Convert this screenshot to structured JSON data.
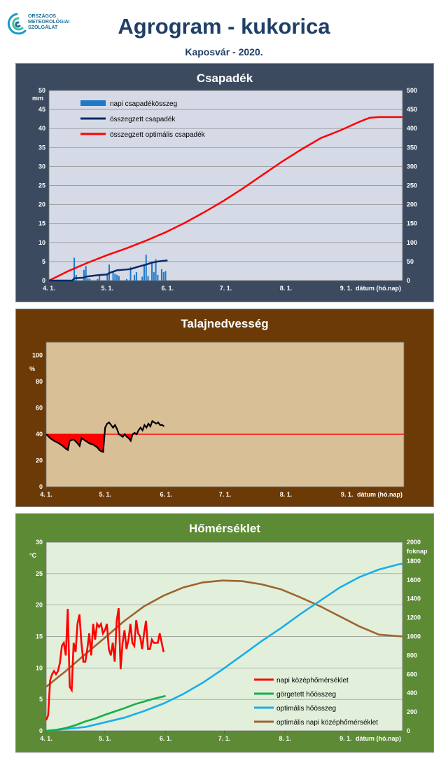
{
  "header": {
    "org_lines": [
      "ORSZÁGOS",
      "METEOROLÓGIAI",
      "SZOLGÁLAT"
    ],
    "title": "Agrogram - kukorica",
    "subtitle": "Kaposvár  - 2020."
  },
  "colors": {
    "precip_panel": "#3b4a5e",
    "precip_plot": "#d5dae6",
    "soil_panel": "#6b3a06",
    "soil_plot": "#d9bf96",
    "temp_panel": "#5d8a35",
    "temp_plot": "#e2efda",
    "daily_precip": "#1f78c8",
    "cum_precip": "#0c2a66",
    "optimal_red": "#ff0000",
    "soil_line": "#000000",
    "rolling_heat": "#11b04a",
    "optimal_heat": "#19aee8",
    "optimal_mean_temp": "#9c6531"
  },
  "x_axis": {
    "tick_labels": [
      "4. 1.",
      "5. 1.",
      "6. 1.",
      "7. 1.",
      "8. 1.",
      "9. 1."
    ],
    "tick_days": [
      0,
      30,
      61,
      91,
      122,
      153
    ],
    "max_day": 182,
    "label": "dátum (hó.nap)"
  },
  "chart_data": [
    {
      "type": "bar",
      "title": "Csapadék",
      "ylabel": "mm",
      "ylim": [
        0,
        50
      ],
      "y_ticks": [
        0,
        5,
        10,
        15,
        20,
        25,
        30,
        35,
        40,
        45,
        50
      ],
      "y2lim": [
        0,
        500
      ],
      "y2_ticks": [
        0,
        50,
        100,
        150,
        200,
        250,
        300,
        350,
        400,
        450,
        500
      ],
      "grid": true,
      "legend_position": "top-left",
      "series": [
        {
          "name": "napi csapadékösszeg",
          "kind": "bar",
          "axis": "left",
          "points": [
            [
              13,
              6.0
            ],
            [
              14,
              1.5
            ],
            [
              18,
              2.8
            ],
            [
              19,
              3.8
            ],
            [
              20,
              0.6
            ],
            [
              21,
              0.5
            ],
            [
              25,
              0.4
            ],
            [
              26,
              1.2
            ],
            [
              30,
              1.8
            ],
            [
              31,
              4.2
            ],
            [
              33,
              2.2
            ],
            [
              34,
              1.8
            ],
            [
              35,
              1.5
            ],
            [
              36,
              1.2
            ],
            [
              40,
              0.4
            ],
            [
              42,
              3.6
            ],
            [
              44,
              1.5
            ],
            [
              45,
              2.2
            ],
            [
              48,
              1.0
            ],
            [
              49,
              4.0
            ],
            [
              50,
              6.8
            ],
            [
              51,
              1.2
            ],
            [
              53,
              4.5
            ],
            [
              54,
              2.2
            ],
            [
              55,
              5.6
            ],
            [
              56,
              1.5
            ],
            [
              58,
              3.0
            ],
            [
              59,
              2.2
            ],
            [
              60,
              2.5
            ]
          ]
        },
        {
          "name": "összegzett csapadék",
          "kind": "line",
          "axis": "right",
          "points": [
            [
              0,
              0
            ],
            [
              12,
              0
            ],
            [
              13,
              6
            ],
            [
              18,
              7.5
            ],
            [
              19,
              10.3
            ],
            [
              25,
              14
            ],
            [
              30,
              16
            ],
            [
              31,
              20
            ],
            [
              35,
              27
            ],
            [
              42,
              30
            ],
            [
              45,
              35
            ],
            [
              50,
              42
            ],
            [
              53,
              47
            ],
            [
              56,
              50
            ],
            [
              61,
              53
            ]
          ]
        },
        {
          "name": "összegzett optimális csapadék",
          "kind": "line",
          "axis": "right",
          "points": [
            [
              0,
              0
            ],
            [
              10,
              25
            ],
            [
              20,
              47
            ],
            [
              30,
              67
            ],
            [
              40,
              85
            ],
            [
              50,
              105
            ],
            [
              60,
              127
            ],
            [
              70,
              152
            ],
            [
              80,
              180
            ],
            [
              90,
              210
            ],
            [
              100,
              243
            ],
            [
              110,
              278
            ],
            [
              120,
              313
            ],
            [
              130,
              345
            ],
            [
              140,
              375
            ],
            [
              150,
              395
            ],
            [
              160,
              418
            ],
            [
              165,
              428
            ],
            [
              170,
              430
            ],
            [
              182,
              430
            ]
          ]
        }
      ]
    },
    {
      "type": "line",
      "title": "Talajnedvesség",
      "ylabel": "%",
      "ylim": [
        0,
        110
      ],
      "y_ticks": [
        0,
        20,
        40,
        60,
        80,
        100
      ],
      "reference_line": 40,
      "grid": false,
      "series": [
        {
          "name": "talajnedvesség",
          "points": [
            [
              0,
              40
            ],
            [
              2,
              37
            ],
            [
              4,
              35
            ],
            [
              6,
              33.5
            ],
            [
              8,
              31.5
            ],
            [
              10,
              29
            ],
            [
              11,
              28
            ],
            [
              12,
              35
            ],
            [
              14,
              36
            ],
            [
              16,
              33
            ],
            [
              17,
              31
            ],
            [
              18,
              37
            ],
            [
              20,
              35
            ],
            [
              22,
              33
            ],
            [
              24,
              32
            ],
            [
              26,
              30
            ],
            [
              27,
              28
            ],
            [
              28,
              27
            ],
            [
              29,
              26.5
            ],
            [
              30,
              45
            ],
            [
              31,
              48
            ],
            [
              32,
              49
            ],
            [
              33,
              47
            ],
            [
              34,
              45
            ],
            [
              35,
              47
            ],
            [
              36,
              44
            ],
            [
              37,
              40
            ],
            [
              38,
              39
            ],
            [
              39,
              38
            ],
            [
              40,
              40
            ],
            [
              41,
              38
            ],
            [
              42,
              37
            ],
            [
              43,
              35
            ],
            [
              44,
              40
            ],
            [
              45,
              41
            ],
            [
              46,
              40
            ],
            [
              47,
              43
            ],
            [
              48,
              45
            ],
            [
              49,
              43
            ],
            [
              50,
              47
            ],
            [
              51,
              45
            ],
            [
              52,
              48
            ],
            [
              53,
              46
            ],
            [
              54,
              50
            ],
            [
              55,
              49
            ],
            [
              56,
              48
            ],
            [
              57,
              49
            ],
            [
              58,
              47
            ],
            [
              59,
              47
            ],
            [
              60,
              46
            ]
          ]
        }
      ]
    },
    {
      "type": "line",
      "title": "Hőmérséklet",
      "ylabel": "°C",
      "ylim": [
        0,
        30
      ],
      "y_ticks": [
        0,
        5,
        10,
        15,
        20,
        25,
        30
      ],
      "y2label": "foknap",
      "y2lim": [
        0,
        2000
      ],
      "y2_ticks": [
        0,
        200,
        400,
        600,
        800,
        1000,
        1200,
        1400,
        1600,
        1800,
        2000
      ],
      "grid": true,
      "legend_position": "bottom-right",
      "series": [
        {
          "name": "napi középhőmérséklet",
          "axis": "left",
          "points": [
            [
              0,
              1.7
            ],
            [
              1,
              2.5
            ],
            [
              2,
              8
            ],
            [
              3,
              9
            ],
            [
              4,
              9.5
            ],
            [
              5,
              9
            ],
            [
              6,
              9.5
            ],
            [
              7,
              10.8
            ],
            [
              8,
              13.5
            ],
            [
              9,
              14
            ],
            [
              10,
              12
            ],
            [
              11,
              19.4
            ],
            [
              12,
              7
            ],
            [
              13,
              6.5
            ],
            [
              14,
              14
            ],
            [
              15,
              12.5
            ],
            [
              16,
              17
            ],
            [
              17,
              18.5
            ],
            [
              18,
              14
            ],
            [
              19,
              11
            ],
            [
              20,
              11
            ],
            [
              21,
              13
            ],
            [
              22,
              15.5
            ],
            [
              23,
              12
            ],
            [
              24,
              17
            ],
            [
              25,
              14.5
            ],
            [
              26,
              17
            ],
            [
              27,
              16.5
            ],
            [
              28,
              17
            ],
            [
              29,
              15.5
            ],
            [
              30,
              16
            ],
            [
              31,
              17
            ],
            [
              32,
              13
            ],
            [
              33,
              12
            ],
            [
              34,
              14
            ],
            [
              35,
              11
            ],
            [
              36,
              17.5
            ],
            [
              37,
              19.5
            ],
            [
              38,
              9.8
            ],
            [
              39,
              14
            ],
            [
              40,
              16
            ],
            [
              41,
              13
            ],
            [
              42,
              14.5
            ],
            [
              43,
              17
            ],
            [
              44,
              14
            ],
            [
              45,
              13.5
            ],
            [
              46,
              17.6
            ],
            [
              47,
              15.5
            ],
            [
              48,
              15
            ],
            [
              49,
              13
            ],
            [
              50,
              15.5
            ],
            [
              51,
              17.5
            ],
            [
              52,
              13
            ],
            [
              53,
              13
            ],
            [
              54,
              14.5
            ],
            [
              55,
              14
            ],
            [
              56,
              14
            ],
            [
              57,
              14
            ],
            [
              58,
              15.5
            ],
            [
              59,
              14
            ],
            [
              60,
              12.5
            ]
          ]
        },
        {
          "name": "görgetett hőösszeg",
          "axis": "right",
          "points": [
            [
              0,
              0
            ],
            [
              5,
              10
            ],
            [
              10,
              30
            ],
            [
              15,
              60
            ],
            [
              20,
              100
            ],
            [
              25,
              130
            ],
            [
              30,
              170
            ],
            [
              35,
              205
            ],
            [
              40,
              240
            ],
            [
              45,
              280
            ],
            [
              50,
              310
            ],
            [
              55,
              340
            ],
            [
              61,
              370
            ]
          ]
        },
        {
          "name": "optimális hőösszeg",
          "axis": "right",
          "points": [
            [
              0,
              0
            ],
            [
              20,
              40
            ],
            [
              40,
              140
            ],
            [
              50,
              210
            ],
            [
              60,
              290
            ],
            [
              70,
              390
            ],
            [
              80,
              510
            ],
            [
              90,
              650
            ],
            [
              100,
              800
            ],
            [
              110,
              950
            ],
            [
              120,
              1090
            ],
            [
              130,
              1240
            ],
            [
              140,
              1380
            ],
            [
              150,
              1520
            ],
            [
              160,
              1630
            ],
            [
              170,
              1710
            ],
            [
              180,
              1765
            ],
            [
              182,
              1770
            ]
          ]
        },
        {
          "name": "optimális napi középhőmérséklet",
          "axis": "left",
          "points": [
            [
              0,
              7
            ],
            [
              10,
              9.5
            ],
            [
              20,
              12.2
            ],
            [
              30,
              14.8
            ],
            [
              40,
              17.5
            ],
            [
              50,
              19.8
            ],
            [
              60,
              21.5
            ],
            [
              70,
              22.8
            ],
            [
              80,
              23.6
            ],
            [
              90,
              23.9
            ],
            [
              100,
              23.8
            ],
            [
              110,
              23.3
            ],
            [
              120,
              22.5
            ],
            [
              130,
              21.2
            ],
            [
              140,
              19.8
            ],
            [
              150,
              18.2
            ],
            [
              160,
              16.6
            ],
            [
              170,
              15.3
            ],
            [
              182,
              15
            ]
          ]
        }
      ]
    }
  ]
}
